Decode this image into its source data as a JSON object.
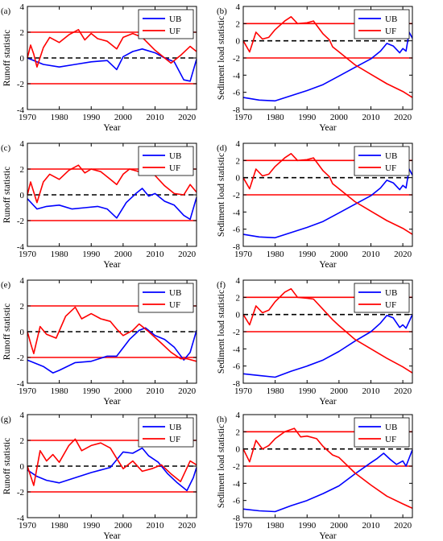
{
  "colors": {
    "ub": "#0000ff",
    "uf": "#ff0000",
    "threshold": "#ff0000",
    "zero_line": "#000000"
  },
  "chart_data": [
    {
      "panel": "(a)",
      "type": "line",
      "xlabel": "Year",
      "ylabel": "Runoff statistic",
      "xlim": [
        1970,
        2023
      ],
      "ylim": [
        -4,
        4
      ],
      "xticks": [
        1970,
        1980,
        1990,
        2000,
        2010,
        2020
      ],
      "yticks": [
        -4,
        -2,
        0,
        2,
        4
      ],
      "thresholds": [
        2,
        -2
      ],
      "zero_line": 0,
      "legend_position": "top-right",
      "series": [
        {
          "name": "UB",
          "x": [
            1970,
            1975,
            1980,
            1985,
            1990,
            1995,
            1998,
            2000,
            2003,
            2006,
            2010,
            2013,
            2016,
            2019,
            2021,
            2023
          ],
          "y": [
            0.0,
            -0.5,
            -0.7,
            -0.5,
            -0.3,
            -0.2,
            -0.9,
            0.1,
            0.5,
            0.7,
            0.4,
            0.0,
            -0.3,
            -1.7,
            -1.8,
            -0.1
          ]
        },
        {
          "name": "UF",
          "x": [
            1970,
            1971,
            1972,
            1973,
            1975,
            1977,
            1980,
            1983,
            1986,
            1988,
            1990,
            1992,
            1995,
            1998,
            2000,
            2003,
            2006,
            2010,
            2012,
            2015,
            2018,
            2021,
            2023
          ],
          "y": [
            0.0,
            1.0,
            0.3,
            -0.7,
            0.8,
            1.6,
            1.2,
            1.8,
            2.2,
            1.4,
            1.9,
            1.5,
            1.3,
            0.7,
            1.6,
            1.9,
            1.6,
            0.6,
            0.2,
            -0.4,
            0.2,
            0.9,
            0.5
          ]
        }
      ]
    },
    {
      "panel": "(b)",
      "type": "line",
      "xlabel": "Year",
      "ylabel": "Sediment load statistic",
      "xlim": [
        1970,
        2023
      ],
      "ylim": [
        -8,
        4
      ],
      "xticks": [
        1970,
        1980,
        1990,
        2000,
        2010,
        2020
      ],
      "yticks": [
        -8,
        -6,
        -4,
        -2,
        0,
        2,
        4
      ],
      "thresholds": [
        2,
        -2
      ],
      "zero_line": 0,
      "legend_position": "top-right",
      "series": [
        {
          "name": "UB",
          "x": [
            1970,
            1975,
            1980,
            1985,
            1990,
            1995,
            2000,
            2005,
            2010,
            2013,
            2015,
            2017,
            2019,
            2020,
            2021,
            2022,
            2023
          ],
          "y": [
            -6.6,
            -6.9,
            -7.0,
            -6.4,
            -5.8,
            -5.1,
            -4.1,
            -3.1,
            -2.1,
            -1.2,
            -0.3,
            -0.6,
            -1.4,
            -0.9,
            -1.2,
            1.0,
            0.3
          ]
        },
        {
          "name": "UF",
          "x": [
            1970,
            1972,
            1974,
            1976,
            1978,
            1980,
            1983,
            1985,
            1987,
            1990,
            1992,
            1995,
            1997,
            1998,
            2000,
            2005,
            2010,
            2015,
            2020,
            2023
          ],
          "y": [
            0.0,
            -1.3,
            1.0,
            0.2,
            0.4,
            1.3,
            2.3,
            2.8,
            2.0,
            2.1,
            2.3,
            0.8,
            0.1,
            -0.7,
            -1.3,
            -2.8,
            -3.9,
            -5.0,
            -5.9,
            -6.6
          ]
        }
      ]
    },
    {
      "panel": "(c)",
      "type": "line",
      "xlabel": "Year",
      "ylabel": "Runoff statistic",
      "xlim": [
        1970,
        2023
      ],
      "ylim": [
        -4,
        4
      ],
      "xticks": [
        1970,
        1980,
        1990,
        2000,
        2010,
        2020
      ],
      "yticks": [
        -4,
        -2,
        0,
        2,
        4
      ],
      "thresholds": [
        2,
        -2
      ],
      "zero_line": 0,
      "legend_position": "top-right",
      "series": [
        {
          "name": "UB",
          "x": [
            1970,
            1973,
            1976,
            1980,
            1984,
            1988,
            1992,
            1995,
            1998,
            2001,
            2004,
            2006,
            2008,
            2010,
            2013,
            2016,
            2019,
            2021,
            2023
          ],
          "y": [
            -0.3,
            -1.1,
            -0.9,
            -0.8,
            -1.1,
            -1.0,
            -0.9,
            -1.1,
            -1.8,
            -0.6,
            0.1,
            0.5,
            -0.1,
            0.1,
            -0.5,
            -0.8,
            -1.6,
            -1.9,
            -0.2
          ]
        },
        {
          "name": "UF",
          "x": [
            1970,
            1971,
            1973,
            1975,
            1977,
            1980,
            1983,
            1986,
            1988,
            1990,
            1993,
            1996,
            1998,
            2000,
            2002,
            2005,
            2008,
            2010,
            2013,
            2016,
            2019,
            2021,
            2023
          ],
          "y": [
            0.0,
            1.0,
            -0.6,
            1.0,
            1.6,
            1.2,
            1.9,
            2.3,
            1.7,
            2.0,
            1.8,
            1.2,
            0.8,
            1.6,
            2.0,
            1.8,
            2.0,
            1.5,
            0.7,
            0.1,
            0.0,
            0.8,
            0.2
          ]
        }
      ]
    },
    {
      "panel": "(d)",
      "type": "line",
      "xlabel": "Year",
      "ylabel": "Sediment load statistic",
      "xlim": [
        1970,
        2023
      ],
      "ylim": [
        -8,
        4
      ],
      "xticks": [
        1970,
        1980,
        1990,
        2000,
        2010,
        2020
      ],
      "yticks": [
        -8,
        -6,
        -4,
        -2,
        0,
        2,
        4
      ],
      "thresholds": [
        2,
        -2
      ],
      "zero_line": 0,
      "legend_position": "top-right",
      "series": [
        {
          "name": "UB",
          "x": [
            1970,
            1975,
            1980,
            1985,
            1990,
            1995,
            2000,
            2005,
            2010,
            2013,
            2015,
            2017,
            2019,
            2020,
            2021,
            2022,
            2023
          ],
          "y": [
            -6.6,
            -6.9,
            -7.0,
            -6.4,
            -5.8,
            -5.1,
            -4.1,
            -3.1,
            -2.1,
            -1.2,
            -0.3,
            -0.6,
            -1.4,
            -0.9,
            -1.2,
            1.0,
            0.3
          ]
        },
        {
          "name": "UF",
          "x": [
            1970,
            1972,
            1974,
            1976,
            1978,
            1980,
            1983,
            1985,
            1987,
            1990,
            1992,
            1995,
            1997,
            1998,
            2000,
            2005,
            2010,
            2015,
            2020,
            2023
          ],
          "y": [
            0.0,
            -1.3,
            1.0,
            0.2,
            0.4,
            1.3,
            2.3,
            2.8,
            2.0,
            2.1,
            2.3,
            0.8,
            0.1,
            -0.7,
            -1.3,
            -2.8,
            -3.9,
            -5.0,
            -5.9,
            -6.6
          ]
        }
      ]
    },
    {
      "panel": "(e)",
      "type": "line",
      "xlabel": "Year",
      "ylabel": "Runoff statistic",
      "xlim": [
        1970,
        2023
      ],
      "ylim": [
        -4,
        4
      ],
      "xticks": [
        1970,
        1980,
        1990,
        2000,
        2010,
        2020
      ],
      "yticks": [
        -4,
        -2,
        0,
        2,
        4
      ],
      "thresholds": [
        2,
        -2
      ],
      "zero_line": 0,
      "legend_position": "top-right",
      "series": [
        {
          "name": "UB",
          "x": [
            1970,
            1975,
            1978,
            1980,
            1985,
            1990,
            1995,
            1998,
            2002,
            2005,
            2007,
            2010,
            2013,
            2016,
            2019,
            2021,
            2023
          ],
          "y": [
            -2.2,
            -2.7,
            -3.2,
            -3.0,
            -2.4,
            -2.3,
            -1.9,
            -1.9,
            -0.6,
            0.1,
            0.3,
            -0.3,
            -0.6,
            -1.2,
            -2.2,
            -1.6,
            0.1
          ]
        },
        {
          "name": "UF",
          "x": [
            1970,
            1971,
            1972,
            1974,
            1976,
            1979,
            1982,
            1985,
            1987,
            1990,
            1993,
            1996,
            1998,
            2000,
            2003,
            2005,
            2008,
            2012,
            2015,
            2018,
            2020,
            2023
          ],
          "y": [
            0.0,
            -0.9,
            -1.7,
            0.4,
            -0.2,
            -0.5,
            1.2,
            1.9,
            1.0,
            1.4,
            1.0,
            0.8,
            0.2,
            -0.3,
            0.1,
            0.6,
            0.0,
            -0.9,
            -1.6,
            -2.1,
            -2.1,
            -2.3
          ]
        }
      ]
    },
    {
      "panel": "(f)",
      "type": "line",
      "xlabel": "Year",
      "ylabel": "Sediment load statistic",
      "xlim": [
        1970,
        2023
      ],
      "ylim": [
        -8,
        4
      ],
      "xticks": [
        1970,
        1980,
        1990,
        2000,
        2010,
        2020
      ],
      "yticks": [
        -8,
        -6,
        -4,
        -2,
        0,
        2,
        4
      ],
      "thresholds": [
        2,
        -2
      ],
      "zero_line": 0,
      "legend_position": "top-right",
      "series": [
        {
          "name": "UB",
          "x": [
            1970,
            1975,
            1980,
            1985,
            1990,
            1995,
            2000,
            2005,
            2010,
            2013,
            2015,
            2017,
            2019,
            2020,
            2021,
            2023
          ],
          "y": [
            -6.9,
            -7.1,
            -7.3,
            -6.6,
            -6.0,
            -5.3,
            -4.3,
            -3.1,
            -2.0,
            -1.0,
            -0.1,
            -0.4,
            -1.5,
            -1.2,
            -1.6,
            0.0
          ]
        },
        {
          "name": "UF",
          "x": [
            1970,
            1972,
            1974,
            1976,
            1978,
            1980,
            1983,
            1985,
            1987,
            1990,
            1992,
            1995,
            1998,
            2000,
            2005,
            2010,
            2015,
            2020,
            2023
          ],
          "y": [
            0.0,
            -1.2,
            1.0,
            0.2,
            0.5,
            1.5,
            2.6,
            3.0,
            2.0,
            1.9,
            1.8,
            0.6,
            -0.6,
            -1.3,
            -2.9,
            -4.0,
            -5.1,
            -6.1,
            -6.8
          ]
        }
      ]
    },
    {
      "panel": "(g)",
      "type": "line",
      "xlabel": "Year",
      "ylabel": "Runoff statistic",
      "xlim": [
        1970,
        2023
      ],
      "ylim": [
        -4,
        4
      ],
      "xticks": [
        1970,
        1980,
        1990,
        2000,
        2010,
        2020
      ],
      "yticks": [
        -4,
        -2,
        0,
        2,
        4
      ],
      "thresholds": [
        2,
        -2
      ],
      "zero_line": 0,
      "legend_position": "top-right",
      "series": [
        {
          "name": "UB",
          "x": [
            1970,
            1973,
            1976,
            1980,
            1985,
            1990,
            1993,
            1996,
            2000,
            2003,
            2006,
            2008,
            2011,
            2014,
            2017,
            2020,
            2022,
            2023
          ],
          "y": [
            -0.3,
            -0.8,
            -1.1,
            -1.3,
            -0.9,
            -0.5,
            -0.3,
            -0.1,
            1.1,
            1.0,
            1.4,
            0.8,
            0.3,
            -0.6,
            -1.3,
            -1.9,
            -0.9,
            -0.1
          ]
        },
        {
          "name": "UF",
          "x": [
            1970,
            1972,
            1974,
            1976,
            1978,
            1980,
            1983,
            1985,
            1987,
            1990,
            1993,
            1996,
            1998,
            2000,
            2003,
            2006,
            2009,
            2012,
            2015,
            2018,
            2021,
            2023
          ],
          "y": [
            0.0,
            -1.5,
            1.2,
            0.4,
            0.9,
            0.3,
            1.6,
            2.1,
            1.2,
            1.6,
            1.8,
            1.4,
            0.6,
            -0.2,
            0.4,
            -0.4,
            -0.2,
            0.1,
            -0.6,
            -1.2,
            0.4,
            0.1
          ]
        }
      ]
    },
    {
      "panel": "(h)",
      "type": "line",
      "xlabel": "Year",
      "ylabel": "Sediment load statistic",
      "xlim": [
        1970,
        2023
      ],
      "ylim": [
        -8,
        4
      ],
      "xticks": [
        1970,
        1980,
        1990,
        2000,
        2010,
        2020
      ],
      "yticks": [
        -8,
        -6,
        -4,
        -2,
        0,
        2,
        4
      ],
      "thresholds": [
        2,
        -2
      ],
      "zero_line": 0,
      "legend_position": "top-right",
      "series": [
        {
          "name": "UB",
          "x": [
            1970,
            1975,
            1980,
            1985,
            1990,
            1995,
            2000,
            2005,
            2010,
            2012,
            2014,
            2016,
            2018,
            2020,
            2021,
            2023
          ],
          "y": [
            -7.0,
            -7.2,
            -7.3,
            -6.6,
            -6.0,
            -5.2,
            -4.3,
            -2.9,
            -1.6,
            -1.1,
            -0.5,
            -1.2,
            -1.8,
            -1.4,
            -2.0,
            -0.1
          ]
        },
        {
          "name": "UF",
          "x": [
            1970,
            1972,
            1974,
            1976,
            1978,
            1980,
            1983,
            1986,
            1988,
            1990,
            1993,
            1995,
            1998,
            2000,
            2005,
            2010,
            2015,
            2020,
            2023
          ],
          "y": [
            0.0,
            -1.5,
            1.0,
            0.0,
            0.4,
            1.2,
            2.0,
            2.4,
            1.4,
            1.5,
            1.2,
            0.3,
            -0.7,
            -1.0,
            -2.8,
            -4.2,
            -5.5,
            -6.4,
            -6.9
          ]
        }
      ]
    }
  ]
}
